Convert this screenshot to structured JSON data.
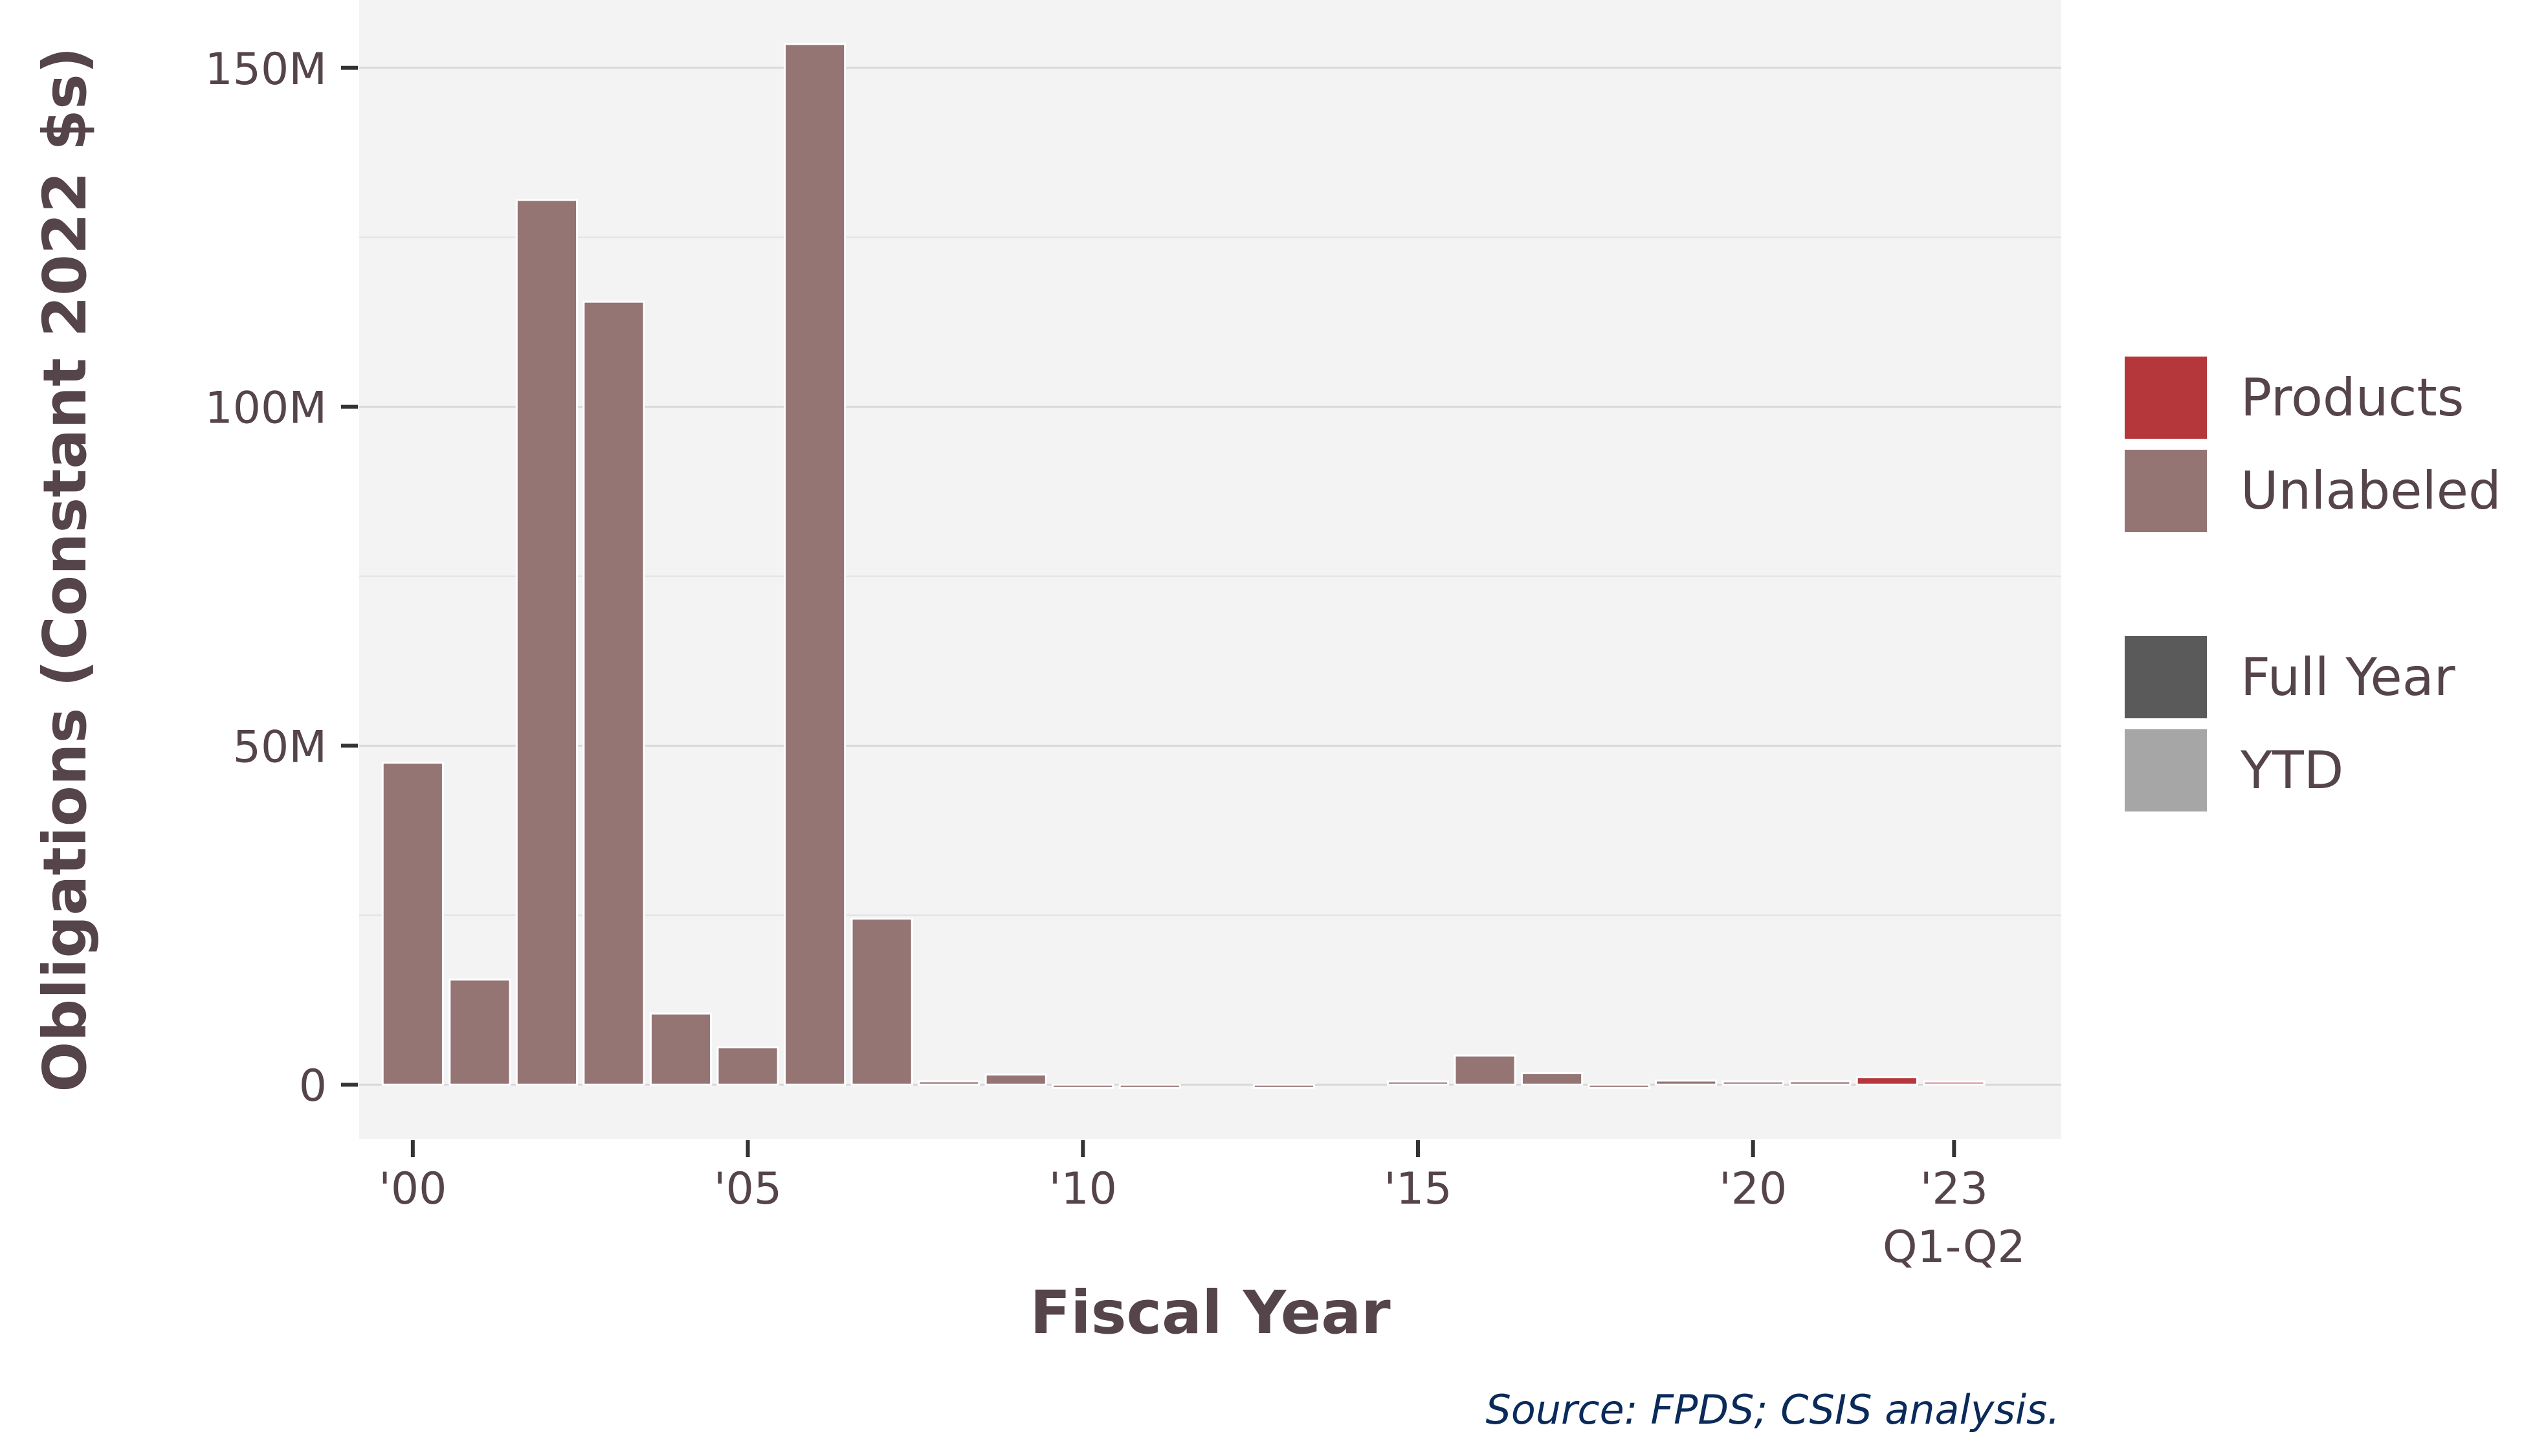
{
  "chart_data": {
    "type": "bar",
    "title": "",
    "xlabel": "Fiscal Year",
    "ylabel": "Obligations (Constant 2022 $s)",
    "ylim": [
      -8000000,
      160000000
    ],
    "yticks": [
      {
        "value": 0,
        "label": "0"
      },
      {
        "value": 50000000,
        "label": "50M"
      },
      {
        "value": 100000000,
        "label": "100M"
      },
      {
        "value": 150000000,
        "label": "150M"
      }
    ],
    "xticks": [
      {
        "value": 2000,
        "label": "'00"
      },
      {
        "value": 2005,
        "label": "'05"
      },
      {
        "value": 2010,
        "label": "'10"
      },
      {
        "value": 2015,
        "label": "'15"
      },
      {
        "value": 2020,
        "label": "'20"
      },
      {
        "value": 2023,
        "label": "'23",
        "sublabel": "Q1-Q2"
      }
    ],
    "xlim": [
      1999.2,
      2024.6
    ],
    "grid": true,
    "legend_position": "right",
    "source": "Source: FPDS; CSIS analysis.",
    "colors": {
      "Products": "#b5373c",
      "Unlabeled": "#957474",
      "Full Year": "#5a5a5a",
      "YTD": "#a6a6a6",
      "panel": "#f3f3f3",
      "grid": "#d9d9d9"
    },
    "legend": {
      "categories": [
        "Products",
        "Unlabeled"
      ],
      "periods": [
        "Full Year",
        "YTD"
      ]
    },
    "series": [
      {
        "name": "Unlabeled",
        "x": [
          2000,
          2001,
          2002,
          2003,
          2004,
          2005,
          2006,
          2007,
          2008,
          2009,
          2010,
          2011,
          2013,
          2015,
          2016,
          2017,
          2018,
          2019,
          2020,
          2021
        ],
        "values": [
          47500000,
          15500000,
          130500000,
          115500000,
          10500000,
          5500000,
          153500000,
          24500000,
          500000,
          1500000,
          -300000,
          -200000,
          -100000,
          100000,
          4300000,
          1700000,
          -300000,
          600000,
          400000,
          500000
        ],
        "period": "Full Year"
      },
      {
        "name": "Products",
        "x": [
          2022,
          2023
        ],
        "values": [
          1100000,
          300000
        ],
        "period": [
          "Full Year",
          "YTD"
        ]
      }
    ]
  }
}
